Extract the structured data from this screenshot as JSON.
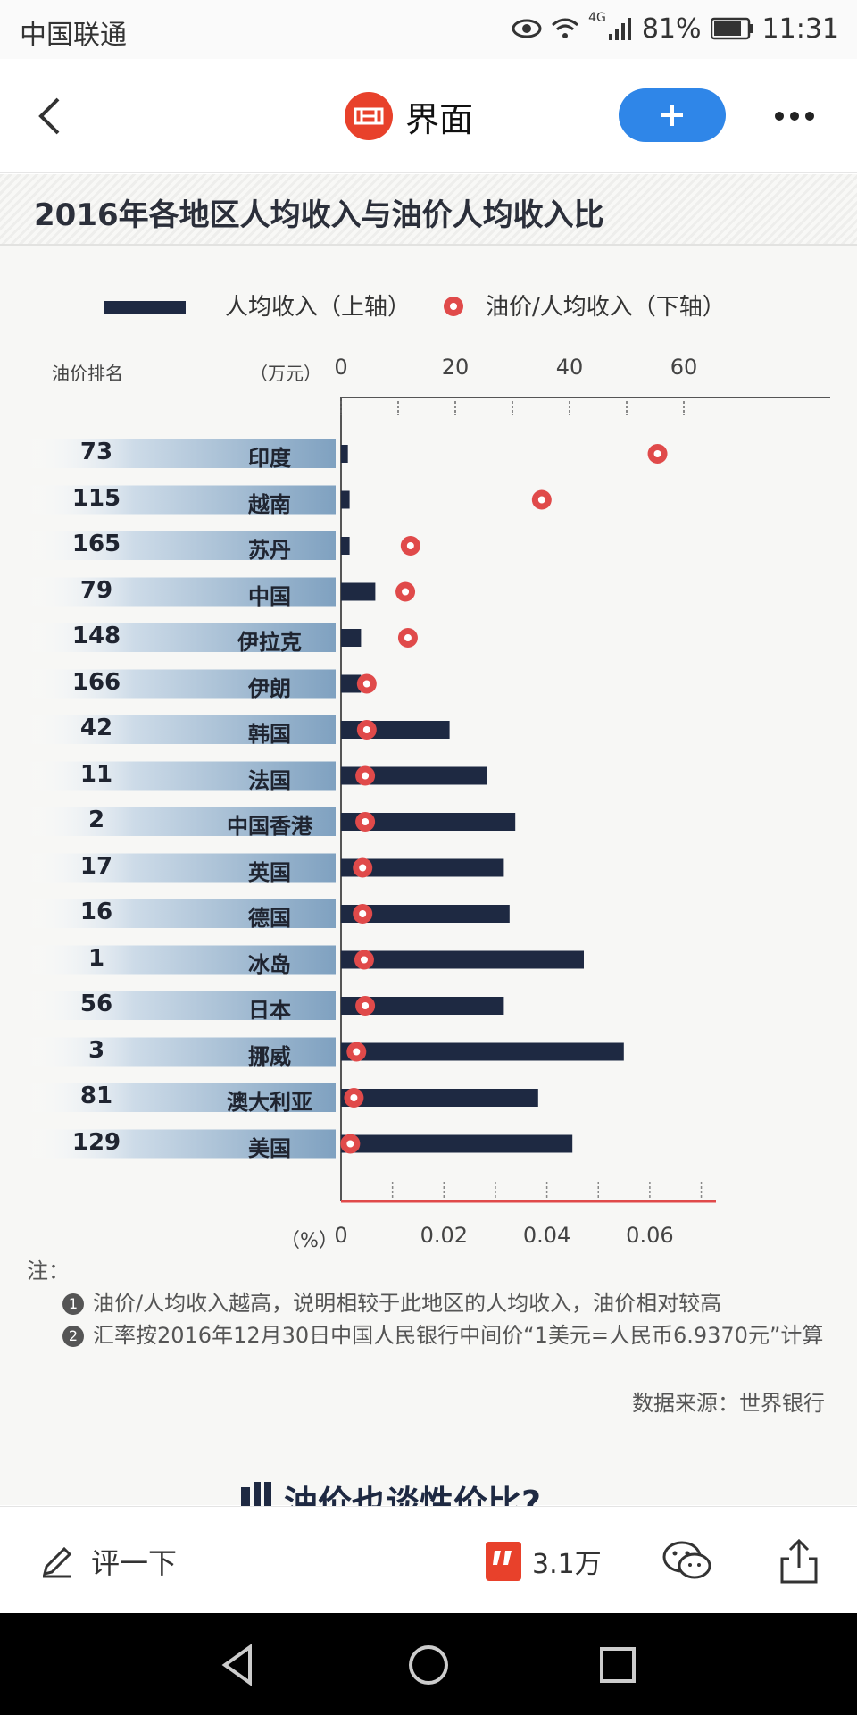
{
  "status_bar": {
    "carrier": "中国联通",
    "network": "4G",
    "battery": "81%",
    "time": "11:31"
  },
  "header": {
    "app_name": "界面",
    "follow_label": "+",
    "brand_color": "#e8412b",
    "accent_color": "#2f86e8"
  },
  "infographic": {
    "title": "2016年各地区人均收入与油价人均收入比",
    "legend_income": "人均收入（上轴）",
    "legend_ratio": "油价/人均收入（下轴）",
    "col_rank": "油价排名",
    "unit_top": "（万元）",
    "unit_bottom": "（%）",
    "notes_head": "注：",
    "note1_num": "1",
    "note1": "油价/人均收入越高，说明相较于此地区的人均收入，油价相对较高",
    "note2_num": "2",
    "note2": "汇率按2016年12月30日中国人民银行中间价“1美元=人民币6.9370元”计算",
    "source": "数据来源：世界银行",
    "next_heading": "油价也谈性价比?"
  },
  "chart_data": {
    "type": "bar",
    "title": "2016年各地区人均收入与油价人均收入比",
    "legend_placement": "top",
    "categories": [
      "印度",
      "越南",
      "苏丹",
      "中国",
      "伊拉克",
      "伊朗",
      "韩国",
      "法国",
      "中国香港",
      "英国",
      "德国",
      "冰岛",
      "日本",
      "挪威",
      "澳大利亚",
      "美国"
    ],
    "ranks": [
      "73",
      "115",
      "165",
      "79",
      "148",
      "166",
      "42",
      "11",
      "2",
      "17",
      "16",
      "1",
      "56",
      "3",
      "81",
      "129"
    ],
    "series": [
      {
        "name": "人均收入（上轴）",
        "axis": "top",
        "unit": "万元",
        "values": [
          1.2,
          1.5,
          1.5,
          6,
          3.5,
          3.5,
          19,
          25.5,
          30.5,
          28.5,
          29.5,
          42.5,
          28.5,
          49.5,
          34.5,
          40.5
        ],
        "color": "#1e2942"
      },
      {
        "name": "油价/人均收入（下轴）",
        "axis": "bottom",
        "unit": "%",
        "values": [
          0.0615,
          0.039,
          0.0135,
          0.0125,
          0.013,
          0.005,
          0.005,
          0.0047,
          0.0047,
          0.0042,
          0.0042,
          0.0045,
          0.0047,
          0.003,
          0.0025,
          0.0018
        ],
        "color": "#e04a4a"
      }
    ],
    "top_axis": {
      "ticks": [
        "0",
        "20",
        "40",
        "60"
      ],
      "range": [
        0,
        66
      ]
    },
    "bottom_axis": {
      "ticks": [
        "0",
        "0.02",
        "0.04",
        "0.06"
      ],
      "range": [
        0,
        0.074
      ]
    },
    "grid": false
  },
  "action_bar": {
    "comment_label": "评一下",
    "like_count": "3.1万"
  }
}
